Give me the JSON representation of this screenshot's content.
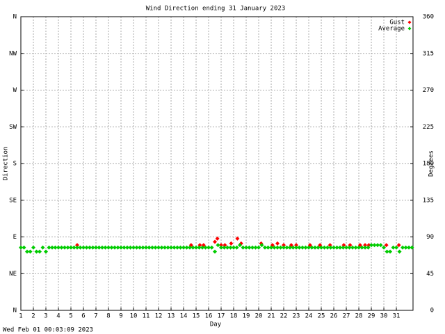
{
  "chart_data": {
    "type": "scatter",
    "title": "Wind Direction ending 31 January 2023",
    "xlabel": "Day",
    "ylabel": "Direction",
    "y2label": "Degrees",
    "timestamp": "Wed Feb 01 00:03:09 2023",
    "xlim": [
      1,
      32.33
    ],
    "xticks": [
      1,
      2,
      3,
      4,
      5,
      6,
      7,
      8,
      9,
      10,
      11,
      12,
      13,
      14,
      15,
      16,
      17,
      18,
      19,
      20,
      21,
      22,
      23,
      24,
      25,
      26,
      27,
      28,
      29,
      30,
      31
    ],
    "ylim": [
      0,
      360
    ],
    "yticks": [
      {
        "value": 0,
        "label": "N"
      },
      {
        "value": 45,
        "label": "NE"
      },
      {
        "value": 90,
        "label": "E"
      },
      {
        "value": 135,
        "label": "SE"
      },
      {
        "value": 180,
        "label": "S"
      },
      {
        "value": 225,
        "label": "SW"
      },
      {
        "value": 270,
        "label": "W"
      },
      {
        "value": 315,
        "label": "NW"
      },
      {
        "value": 360,
        "label": "N"
      }
    ],
    "y2lim": [
      0,
      360
    ],
    "y2ticks": [
      0,
      45,
      90,
      135,
      180,
      225,
      270,
      315,
      360
    ],
    "grid": true,
    "legend": "upper right",
    "series": [
      {
        "name": "Gust",
        "color": "#ff0000",
        "x": [
          5.5,
          14.6,
          15.3,
          15.6,
          16.5,
          16.7,
          17.0,
          17.3,
          17.8,
          18.3,
          18.6,
          20.2,
          21.1,
          21.5,
          22.0,
          22.6,
          23.0,
          24.1,
          24.9,
          25.7,
          26.8,
          27.3,
          28.1,
          28.5,
          28.8,
          30.2,
          31.2
        ],
        "values": [
          80,
          80,
          80,
          80,
          84,
          88,
          80,
          80,
          82,
          88,
          82,
          82,
          80,
          82,
          80,
          80,
          80,
          80,
          80,
          80,
          80,
          80,
          80,
          80,
          80,
          80,
          80
        ]
      },
      {
        "name": "Average",
        "color": "#00cc00",
        "x": [
          1,
          1.25,
          1.5,
          1.75,
          2,
          2.25,
          2.5,
          2.75,
          3,
          3.25,
          3.5,
          3.75,
          4,
          4.25,
          4.5,
          4.75,
          5,
          5.25,
          5.5,
          5.75,
          6,
          6.25,
          6.5,
          6.75,
          7,
          7.25,
          7.5,
          7.75,
          8,
          8.25,
          8.5,
          8.75,
          9,
          9.25,
          9.5,
          9.75,
          10,
          10.25,
          10.5,
          10.75,
          11,
          11.25,
          11.5,
          11.75,
          12,
          12.25,
          12.5,
          12.75,
          13,
          13.25,
          13.5,
          13.75,
          14,
          14.25,
          14.5,
          14.75,
          15,
          15.25,
          15.5,
          15.75,
          16,
          16.25,
          16.5,
          16.75,
          17,
          17.25,
          17.5,
          17.75,
          18,
          18.25,
          18.5,
          18.75,
          19,
          19.25,
          19.5,
          19.75,
          20,
          20.25,
          20.5,
          20.75,
          21,
          21.25,
          21.5,
          21.75,
          22,
          22.25,
          22.5,
          22.75,
          23,
          23.25,
          23.5,
          23.75,
          24,
          24.25,
          24.5,
          24.75,
          25,
          25.25,
          25.5,
          25.75,
          26,
          26.25,
          26.5,
          26.75,
          27,
          27.25,
          27.5,
          27.75,
          28,
          28.25,
          28.5,
          28.75,
          29,
          29.25,
          29.5,
          29.75,
          30,
          30.25,
          30.5,
          30.75,
          31,
          31.25,
          31.5,
          31.75,
          32,
          32.25
        ],
        "values": [
          77,
          77,
          72,
          72,
          77,
          72,
          72,
          77,
          72,
          77,
          77,
          77,
          77,
          77,
          77,
          77,
          77,
          77,
          77,
          77,
          77,
          77,
          77,
          77,
          77,
          77,
          77,
          77,
          77,
          77,
          77,
          77,
          77,
          77,
          77,
          77,
          77,
          77,
          77,
          77,
          77,
          77,
          77,
          77,
          77,
          77,
          77,
          77,
          77,
          77,
          77,
          77,
          77,
          77,
          77,
          77,
          77,
          77,
          77,
          77,
          77,
          77,
          72,
          80,
          77,
          77,
          77,
          77,
          77,
          77,
          80,
          77,
          77,
          77,
          77,
          77,
          77,
          80,
          77,
          77,
          77,
          77,
          77,
          77,
          77,
          77,
          77,
          77,
          77,
          77,
          77,
          77,
          77,
          77,
          77,
          77,
          77,
          77,
          77,
          77,
          77,
          77,
          77,
          77,
          77,
          77,
          77,
          77,
          77,
          77,
          77,
          77,
          80,
          80,
          80,
          80,
          77,
          72,
          72,
          77,
          77,
          72,
          77,
          77,
          77,
          77
        ]
      }
    ]
  }
}
